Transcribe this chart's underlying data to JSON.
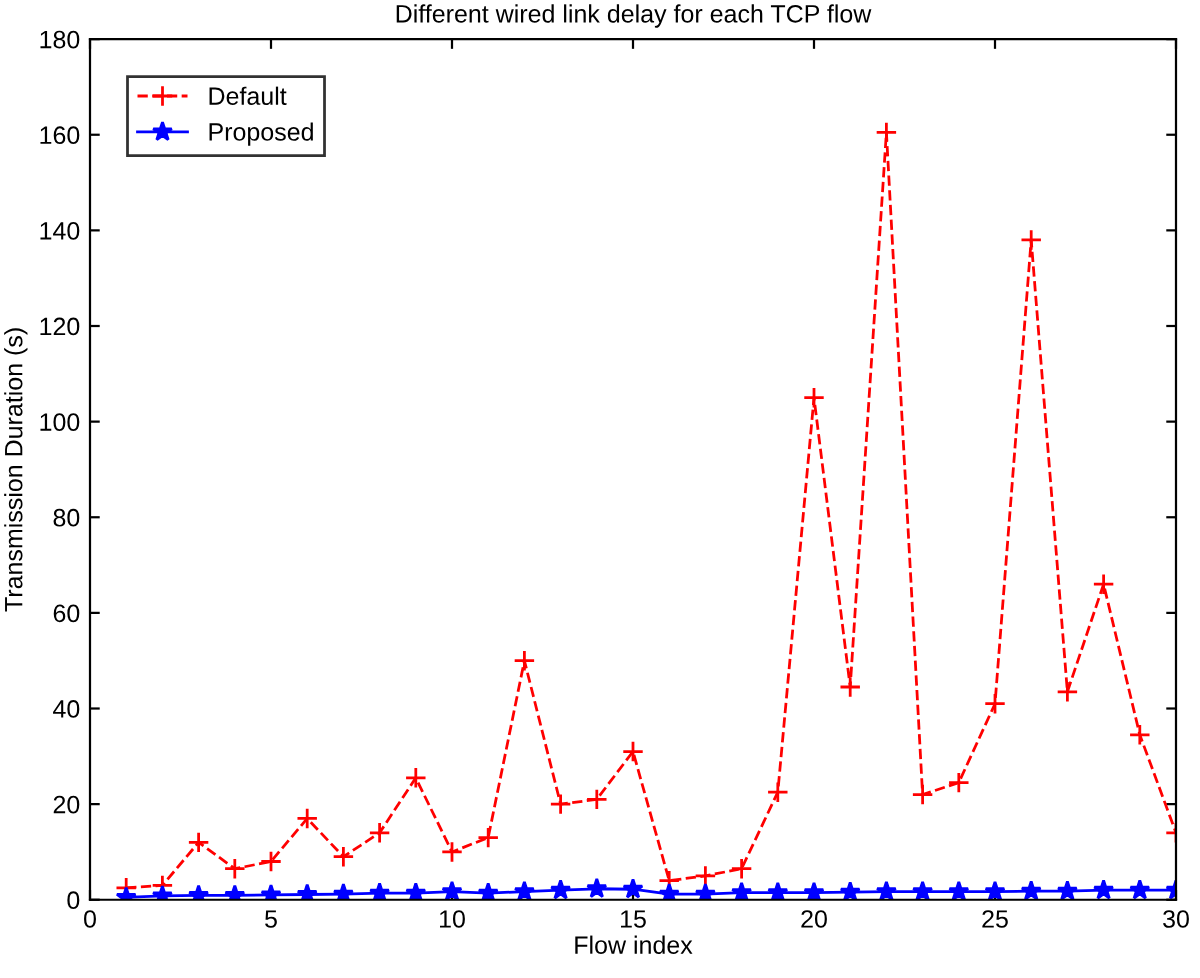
{
  "chart_data": {
    "type": "line",
    "title": "Different wired link delay for each TCP flow",
    "xlabel": "Flow index",
    "ylabel": "Transmission Duration (s)",
    "x": [
      1,
      2,
      3,
      4,
      5,
      6,
      7,
      8,
      9,
      10,
      11,
      12,
      13,
      14,
      15,
      16,
      17,
      18,
      19,
      20,
      21,
      22,
      23,
      24,
      25,
      26,
      27,
      28,
      29,
      30
    ],
    "series": [
      {
        "name": "Default",
        "color": "#ff0000",
        "marker": "cross",
        "line_style": "dashed",
        "values": [
          2.5,
          3,
          12,
          6.5,
          8,
          17,
          9,
          14,
          25.5,
          10,
          13,
          50,
          20,
          21,
          31,
          4,
          5,
          6.5,
          22.5,
          105,
          44.5,
          160.5,
          22,
          24.5,
          41,
          138,
          43.5,
          66,
          34.5,
          14
        ]
      },
      {
        "name": "Proposed",
        "color": "#0000ff",
        "marker": "star",
        "line_style": "solid",
        "values": [
          0.5,
          0.8,
          0.9,
          0.9,
          1,
          1.1,
          1.2,
          1.4,
          1.4,
          1.7,
          1.4,
          1.7,
          2,
          2.3,
          2.2,
          1.2,
          1.2,
          1.5,
          1.5,
          1.5,
          1.6,
          1.7,
          1.7,
          1.7,
          1.7,
          1.8,
          1.8,
          2,
          2,
          2
        ]
      }
    ],
    "xlim": [
      0,
      30
    ],
    "ylim": [
      0,
      180
    ],
    "xticks": [
      0,
      5,
      10,
      15,
      20,
      25,
      30
    ],
    "yticks": [
      0,
      20,
      40,
      60,
      80,
      100,
      120,
      140,
      160,
      180
    ],
    "grid": false,
    "legend": "top left"
  }
}
